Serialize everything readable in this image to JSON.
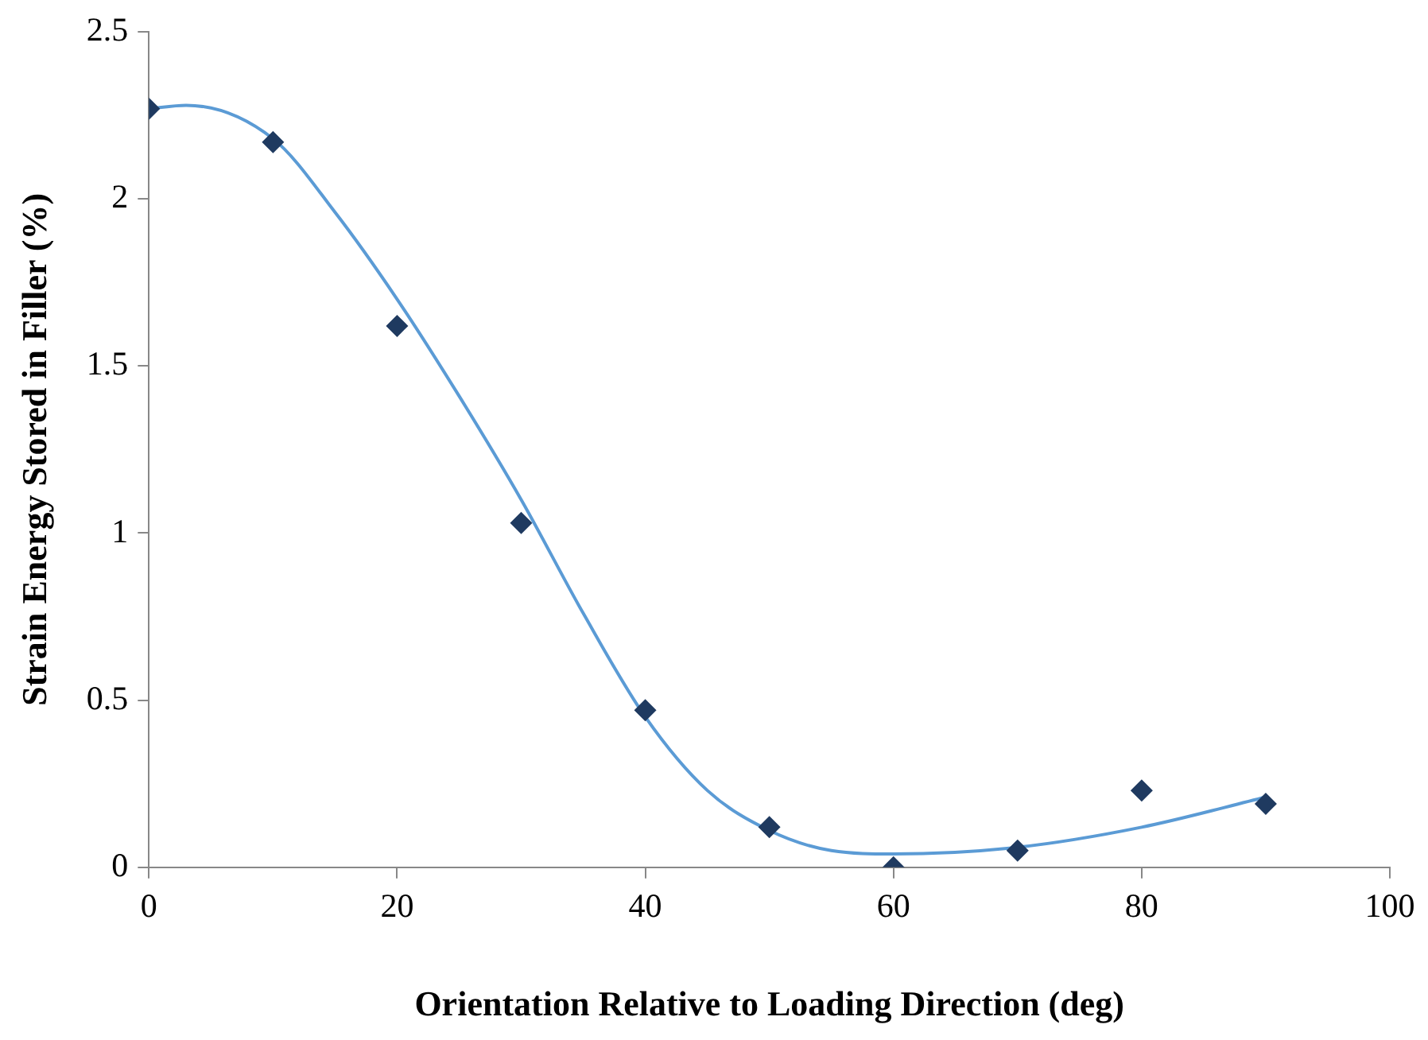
{
  "chart_data": {
    "type": "scatter",
    "xlabel": "Orientation Relative to Loading Direction (deg)",
    "ylabel": "Strain Energy Stored in Filler (%)",
    "xlim": [
      0,
      100
    ],
    "xticks": [
      0,
      20,
      40,
      60,
      80,
      100
    ],
    "ylim": [
      0,
      2.5
    ],
    "yticks": [
      0,
      0.5,
      1,
      1.5,
      2,
      2.5
    ],
    "grid": false,
    "legend": false,
    "marker": "diamond",
    "series": [
      {
        "color": "#1f3a60",
        "x": [
          0,
          10,
          20,
          30,
          40,
          50,
          60,
          70,
          80,
          90
        ],
        "values": [
          2.27,
          2.17,
          1.62,
          1.03,
          0.47,
          0.12,
          0,
          0.05,
          0.23,
          0.19
        ]
      },
      {
        "type": "line",
        "color": "#5b9bd5",
        "marker": "none",
        "line_style": "solid",
        "x": [
          0,
          3,
          10,
          15,
          20,
          25,
          30,
          35,
          40,
          45,
          50,
          55,
          60,
          70,
          80,
          90
        ],
        "values": [
          2.27,
          2.28,
          2.18,
          1.96,
          1.7,
          1.41,
          1.1,
          0.76,
          0.45,
          0.23,
          0.11,
          0.05,
          0.04,
          0.06,
          0.12,
          0.21
        ]
      }
    ]
  }
}
